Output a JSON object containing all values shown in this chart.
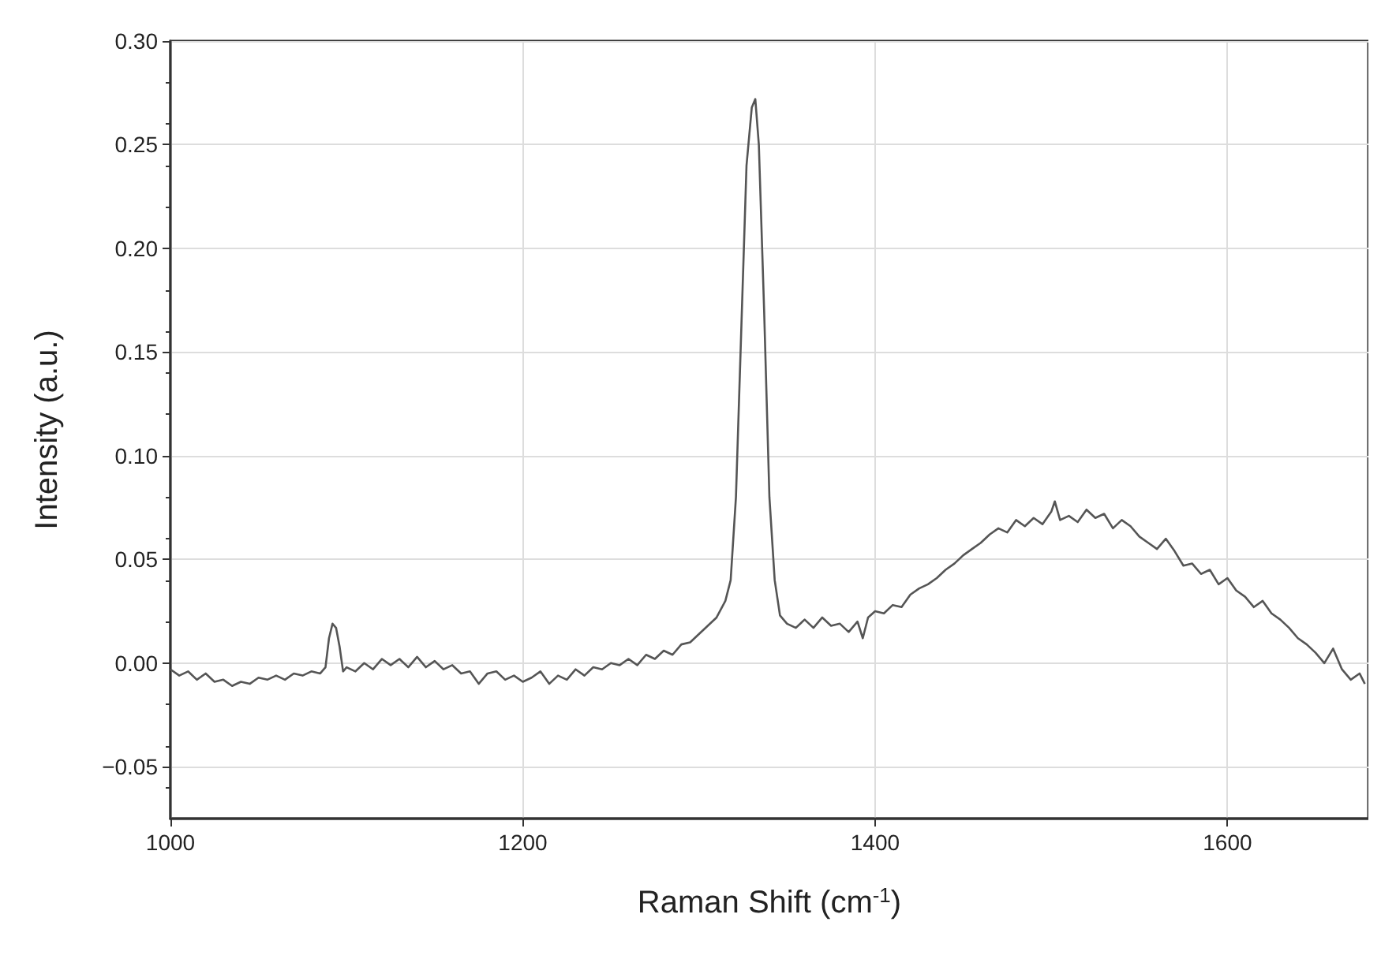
{
  "chart_data": {
    "type": "line",
    "xlabel": "Raman Shift (cm$^{-1}$)",
    "ylabel": "Intensity (a.u.)",
    "x": [
      1000,
      1005,
      1010,
      1015,
      1020,
      1025,
      1030,
      1035,
      1040,
      1045,
      1050,
      1055,
      1060,
      1065,
      1070,
      1075,
      1080,
      1085,
      1088,
      1090,
      1092,
      1094,
      1096,
      1098,
      1100,
      1105,
      1110,
      1115,
      1120,
      1125,
      1130,
      1135,
      1140,
      1145,
      1150,
      1155,
      1160,
      1165,
      1170,
      1175,
      1180,
      1185,
      1190,
      1195,
      1200,
      1205,
      1210,
      1215,
      1220,
      1225,
      1230,
      1235,
      1240,
      1245,
      1250,
      1255,
      1260,
      1265,
      1270,
      1275,
      1280,
      1285,
      1290,
      1295,
      1300,
      1305,
      1310,
      1315,
      1318,
      1321,
      1324,
      1327,
      1330,
      1332,
      1334,
      1337,
      1340,
      1343,
      1346,
      1350,
      1355,
      1360,
      1365,
      1370,
      1375,
      1380,
      1385,
      1390,
      1393,
      1396,
      1400,
      1405,
      1410,
      1415,
      1420,
      1425,
      1430,
      1435,
      1440,
      1445,
      1450,
      1455,
      1460,
      1465,
      1470,
      1475,
      1480,
      1485,
      1490,
      1495,
      1500,
      1502,
      1505,
      1510,
      1515,
      1520,
      1525,
      1530,
      1535,
      1540,
      1545,
      1550,
      1555,
      1560,
      1565,
      1570,
      1575,
      1580,
      1585,
      1590,
      1595,
      1600,
      1605,
      1610,
      1615,
      1620,
      1625,
      1630,
      1635,
      1640,
      1645,
      1650,
      1655,
      1660,
      1665,
      1670,
      1675,
      1678
    ],
    "series": [
      {
        "color": "#555555",
        "values": [
          -0.003,
          -0.006,
          -0.004,
          -0.008,
          -0.005,
          -0.009,
          -0.008,
          -0.011,
          -0.009,
          -0.01,
          -0.007,
          -0.008,
          -0.006,
          -0.008,
          -0.005,
          -0.006,
          -0.004,
          -0.005,
          -0.002,
          0.012,
          0.019,
          0.017,
          0.008,
          -0.004,
          -0.002,
          -0.004,
          0.0,
          -0.003,
          0.002,
          -0.001,
          0.002,
          -0.002,
          0.003,
          -0.002,
          0.001,
          -0.003,
          -0.001,
          -0.005,
          -0.004,
          -0.01,
          -0.005,
          -0.004,
          -0.008,
          -0.006,
          -0.009,
          -0.007,
          -0.004,
          -0.01,
          -0.006,
          -0.008,
          -0.003,
          -0.006,
          -0.002,
          -0.003,
          0.0,
          -0.001,
          0.002,
          -0.001,
          0.004,
          0.002,
          0.006,
          0.004,
          0.009,
          0.01,
          0.014,
          0.018,
          0.022,
          0.03,
          0.04,
          0.08,
          0.16,
          0.24,
          0.268,
          0.272,
          0.25,
          0.17,
          0.08,
          0.04,
          0.023,
          0.019,
          0.017,
          0.021,
          0.017,
          0.022,
          0.018,
          0.019,
          0.015,
          0.02,
          0.012,
          0.022,
          0.025,
          0.024,
          0.028,
          0.027,
          0.033,
          0.036,
          0.038,
          0.041,
          0.045,
          0.048,
          0.052,
          0.055,
          0.058,
          0.062,
          0.065,
          0.063,
          0.069,
          0.066,
          0.07,
          0.067,
          0.073,
          0.078,
          0.069,
          0.071,
          0.068,
          0.074,
          0.07,
          0.072,
          0.065,
          0.069,
          0.066,
          0.061,
          0.058,
          0.055,
          0.06,
          0.054,
          0.047,
          0.048,
          0.043,
          0.045,
          0.038,
          0.041,
          0.035,
          0.032,
          0.027,
          0.03,
          0.024,
          0.021,
          0.017,
          0.012,
          0.009,
          0.005,
          0.0,
          0.007,
          -0.003,
          -0.008,
          -0.005,
          -0.01
        ]
      }
    ],
    "xlim": [
      1000,
      1680
    ],
    "xticks": [
      1000,
      1200,
      1400,
      1600
    ],
    "ylim": [
      -0.075,
      0.3
    ],
    "yticks": [
      {
        "value": -0.05,
        "label": "−0.05"
      },
      {
        "value": 0,
        "label": "0.00"
      },
      {
        "value": 0.05,
        "label": "0.05"
      },
      {
        "value": 0.1,
        "label": "0.10"
      },
      {
        "value": 0.15,
        "label": "0.15"
      },
      {
        "value": 0.2,
        "label": "0.20"
      },
      {
        "value": 0.25,
        "label": "0.25"
      },
      {
        "value": 0.3,
        "label": "0.30"
      }
    ],
    "grid": true,
    "marker": "none",
    "line_style": "solid"
  }
}
